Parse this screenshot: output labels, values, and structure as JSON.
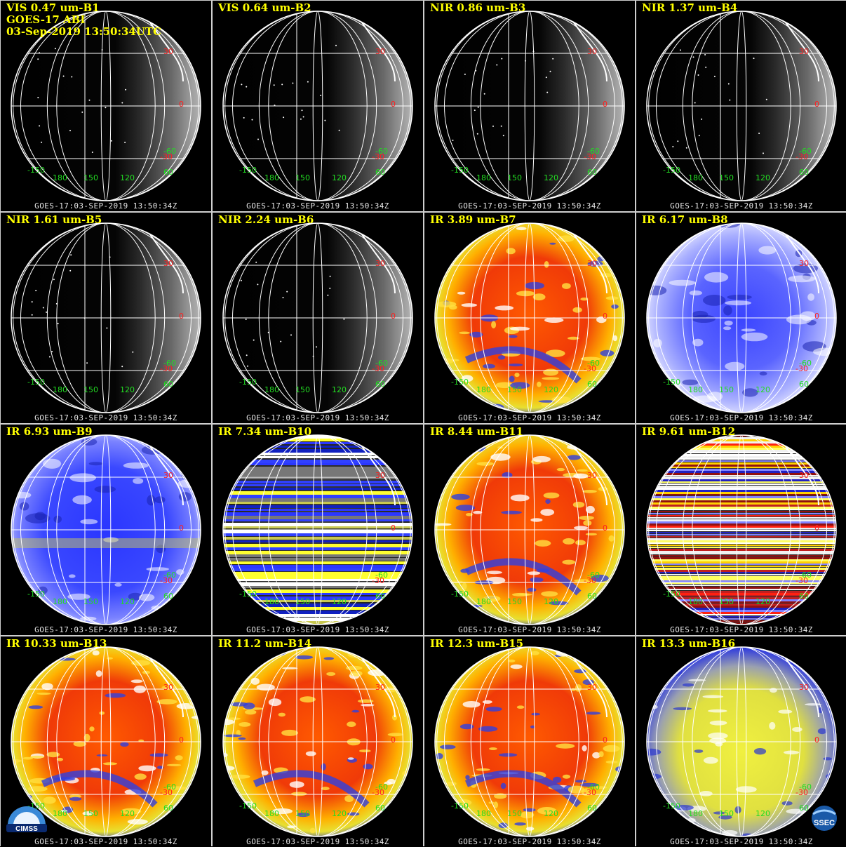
{
  "header": {
    "satellite": "GOES-17 ABI",
    "datetime": "03-Sep-2019 13:50:34UTC"
  },
  "footer_text": "GOES-17:03-SEP-2019 13:50:34Z",
  "colors": {
    "title": "#ffff00",
    "latitude_label": "#ff2020",
    "longitude_label": "#22dd22",
    "grid": "#ffffff",
    "background": "#000000"
  },
  "grid_labels": {
    "latitudes": [
      "30",
      "0",
      "-30"
    ],
    "longitudes": [
      "-150",
      "180",
      "150",
      "120",
      "60"
    ],
    "extra": "-60"
  },
  "panels": [
    {
      "title": "VIS 0.47 um-B1",
      "style": "vis"
    },
    {
      "title": "VIS 0.64 um-B2",
      "style": "vis"
    },
    {
      "title": "NIR 0.86 um-B3",
      "style": "vis"
    },
    {
      "title": "NIR 1.37 um-B4",
      "style": "vis"
    },
    {
      "title": "NIR 1.61 um-B5",
      "style": "vis"
    },
    {
      "title": "NIR 2.24 um-B6",
      "style": "vis"
    },
    {
      "title": "IR 3.89 um-B7",
      "style": "ir"
    },
    {
      "title": "IR 6.17 um-B8",
      "style": "wv"
    },
    {
      "title": "IR 6.93 um-B9",
      "style": "wv2"
    },
    {
      "title": "IR 7.34 um-B10",
      "style": "striped"
    },
    {
      "title": "IR 8.44 um-B11",
      "style": "ir"
    },
    {
      "title": "IR 9.61 um-B12",
      "style": "ozone"
    },
    {
      "title": "IR 10.33 um-B13",
      "style": "ir"
    },
    {
      "title": "IR 11.2 um-B14",
      "style": "ir"
    },
    {
      "title": "IR 12.3 um-B15",
      "style": "ir"
    },
    {
      "title": "IR 13.3 um-B16",
      "style": "co2"
    }
  ],
  "logos": {
    "left": "CIMSS",
    "right": "SSEC"
  }
}
